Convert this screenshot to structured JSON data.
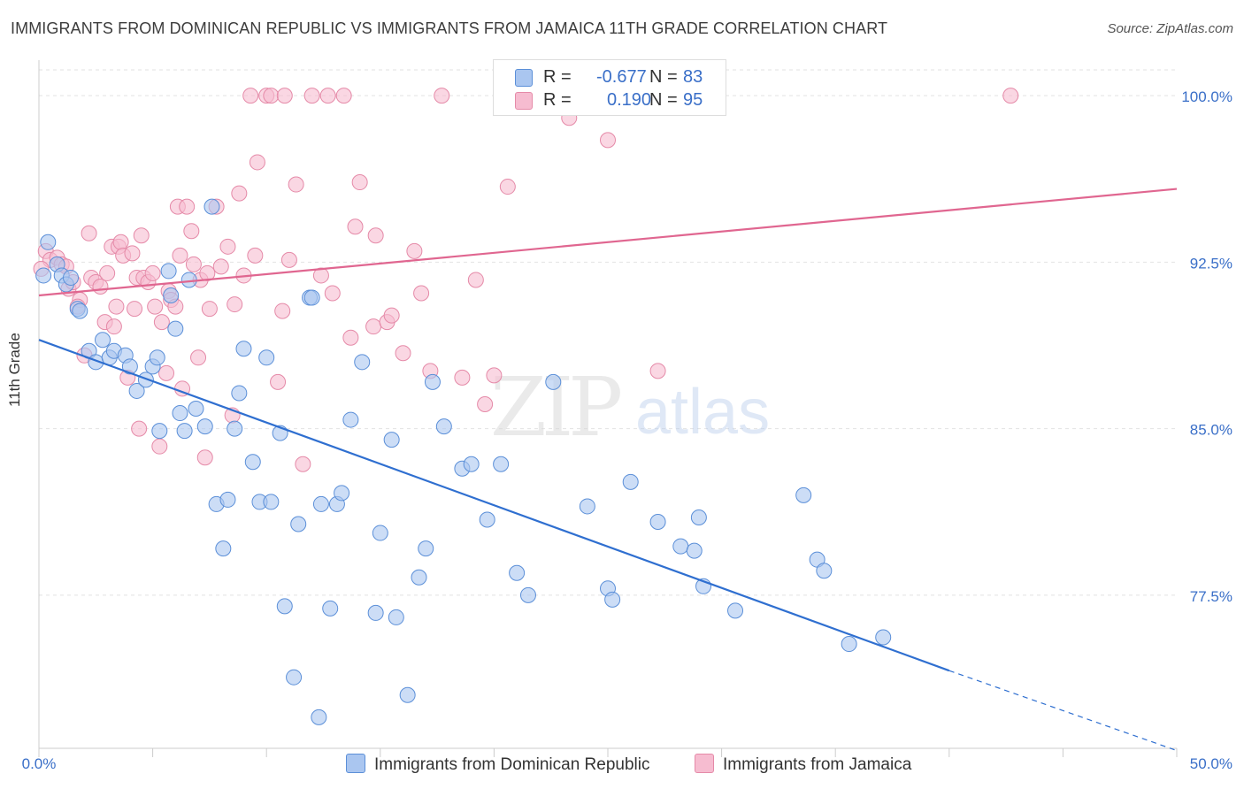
{
  "header": {
    "title": "IMMIGRANTS FROM DOMINICAN REPUBLIC VS IMMIGRANTS FROM JAMAICA 11TH GRADE CORRELATION CHART",
    "source": "Source: ZipAtlas.com"
  },
  "watermark": {
    "zip": "ZIP",
    "atlas": "atlas"
  },
  "legend": {
    "series1": {
      "r_label": "R =",
      "r_value": "-0.677",
      "n_label": "N =",
      "n_value": "83"
    },
    "series2": {
      "r_label": "R =",
      "r_value": "0.190",
      "n_label": "N =",
      "n_value": "95"
    }
  },
  "colors": {
    "blue_fill": "#aac6f0",
    "blue_stroke": "#5b8fd8",
    "blue_line": "#2f6fd0",
    "pink_fill": "#f6bcd0",
    "pink_stroke": "#e58aa8",
    "pink_line": "#e06690",
    "tick_label": "#3a6fc8",
    "grid": "#e2e2e2"
  },
  "chart_data": {
    "type": "scatter",
    "title": "IMMIGRANTS FROM DOMINICAN REPUBLIC VS IMMIGRANTS FROM JAMAICA 11TH GRADE CORRELATION CHART",
    "ylabel": "11th Grade",
    "xlim": [
      0,
      50
    ],
    "ylim": [
      70.6,
      101.6
    ],
    "x_tick_labels": [
      {
        "value": 0,
        "label": "0.0%"
      },
      {
        "value": 50,
        "label": "50.0%"
      }
    ],
    "y_ticks": [
      {
        "value": 77.5,
        "label": "77.5%"
      },
      {
        "value": 85.0,
        "label": "85.0%"
      },
      {
        "value": 92.5,
        "label": "92.5%"
      },
      {
        "value": 100.0,
        "label": "100.0%"
      }
    ],
    "series": [
      {
        "name": "Immigrants from Dominican Republic",
        "color": "#5b8fd8",
        "trend": {
          "x": [
            0,
            40
          ],
          "y": [
            89.0,
            74.1
          ],
          "dashed_to": [
            50,
            70.5
          ]
        },
        "points": [
          [
            0.4,
            93.4
          ],
          [
            0.8,
            92.4
          ],
          [
            1.0,
            91.9
          ],
          [
            1.2,
            91.5
          ],
          [
            1.4,
            91.8
          ],
          [
            1.7,
            90.4
          ],
          [
            1.8,
            90.3
          ],
          [
            2.2,
            88.5
          ],
          [
            2.5,
            88.0
          ],
          [
            2.8,
            89.0
          ],
          [
            3.1,
            88.2
          ],
          [
            3.3,
            88.5
          ],
          [
            3.8,
            88.3
          ],
          [
            4.0,
            87.8
          ],
          [
            4.3,
            86.7
          ],
          [
            4.7,
            87.2
          ],
          [
            5.0,
            87.8
          ],
          [
            5.2,
            88.2
          ],
          [
            5.3,
            84.9
          ],
          [
            5.7,
            92.1
          ],
          [
            5.8,
            91.0
          ],
          [
            6.0,
            89.5
          ],
          [
            6.2,
            85.7
          ],
          [
            6.4,
            84.9
          ],
          [
            6.6,
            91.7
          ],
          [
            6.9,
            85.9
          ],
          [
            7.3,
            85.1
          ],
          [
            7.6,
            95.0
          ],
          [
            7.8,
            81.6
          ],
          [
            8.1,
            79.6
          ],
          [
            8.3,
            81.8
          ],
          [
            8.6,
            85.0
          ],
          [
            8.8,
            86.6
          ],
          [
            9.0,
            88.6
          ],
          [
            9.4,
            83.5
          ],
          [
            9.7,
            81.7
          ],
          [
            10.0,
            88.2
          ],
          [
            10.2,
            81.7
          ],
          [
            10.6,
            84.8
          ],
          [
            10.8,
            77.0
          ],
          [
            11.2,
            73.8
          ],
          [
            11.4,
            80.7
          ],
          [
            11.9,
            90.9
          ],
          [
            12.0,
            90.9
          ],
          [
            12.3,
            72.0
          ],
          [
            12.4,
            81.6
          ],
          [
            12.8,
            76.9
          ],
          [
            13.1,
            81.6
          ],
          [
            13.3,
            82.1
          ],
          [
            13.7,
            85.4
          ],
          [
            14.2,
            88.0
          ],
          [
            14.8,
            76.7
          ],
          [
            15.0,
            80.3
          ],
          [
            15.5,
            84.5
          ],
          [
            15.7,
            76.5
          ],
          [
            16.2,
            73.0
          ],
          [
            16.7,
            78.3
          ],
          [
            17.0,
            79.6
          ],
          [
            17.3,
            87.1
          ],
          [
            17.8,
            85.1
          ],
          [
            18.6,
            83.2
          ],
          [
            19.0,
            83.4
          ],
          [
            19.7,
            80.9
          ],
          [
            20.3,
            83.4
          ],
          [
            21.0,
            78.5
          ],
          [
            21.5,
            77.5
          ],
          [
            22.6,
            87.1
          ],
          [
            24.1,
            81.5
          ],
          [
            25.0,
            77.8
          ],
          [
            25.2,
            77.3
          ],
          [
            26.0,
            82.6
          ],
          [
            27.2,
            80.8
          ],
          [
            28.2,
            79.7
          ],
          [
            28.8,
            79.5
          ],
          [
            29.0,
            81.0
          ],
          [
            29.2,
            77.9
          ],
          [
            30.6,
            76.8
          ],
          [
            33.6,
            82.0
          ],
          [
            34.2,
            79.1
          ],
          [
            34.5,
            78.6
          ],
          [
            35.6,
            75.3
          ],
          [
            37.1,
            75.6
          ],
          [
            0.2,
            91.9
          ]
        ]
      },
      {
        "name": "Immigrants from Jamaica",
        "color": "#e58aa8",
        "trend": {
          "x": [
            0,
            50
          ],
          "y": [
            91.0,
            95.8
          ]
        },
        "points": [
          [
            0.3,
            93.0
          ],
          [
            0.5,
            92.6
          ],
          [
            0.8,
            92.7
          ],
          [
            1.0,
            92.4
          ],
          [
            1.2,
            92.3
          ],
          [
            1.3,
            91.3
          ],
          [
            1.5,
            91.6
          ],
          [
            1.8,
            90.8
          ],
          [
            2.0,
            88.3
          ],
          [
            2.2,
            93.8
          ],
          [
            2.3,
            91.8
          ],
          [
            2.5,
            91.6
          ],
          [
            2.7,
            91.4
          ],
          [
            2.9,
            89.8
          ],
          [
            3.0,
            92.0
          ],
          [
            3.2,
            93.2
          ],
          [
            3.3,
            89.6
          ],
          [
            3.4,
            90.5
          ],
          [
            3.5,
            93.2
          ],
          [
            3.6,
            93.4
          ],
          [
            3.7,
            92.8
          ],
          [
            3.9,
            87.3
          ],
          [
            4.1,
            92.9
          ],
          [
            4.2,
            90.4
          ],
          [
            4.3,
            91.8
          ],
          [
            4.4,
            85.0
          ],
          [
            4.5,
            93.7
          ],
          [
            4.6,
            91.8
          ],
          [
            4.8,
            91.6
          ],
          [
            5.0,
            92.0
          ],
          [
            5.1,
            90.5
          ],
          [
            5.3,
            84.2
          ],
          [
            5.4,
            89.8
          ],
          [
            5.6,
            87.5
          ],
          [
            5.7,
            91.2
          ],
          [
            5.8,
            90.8
          ],
          [
            6.0,
            90.5
          ],
          [
            6.1,
            95.0
          ],
          [
            6.2,
            92.8
          ],
          [
            6.3,
            86.8
          ],
          [
            6.5,
            95.0
          ],
          [
            6.7,
            93.9
          ],
          [
            6.8,
            92.4
          ],
          [
            7.0,
            88.2
          ],
          [
            7.1,
            91.7
          ],
          [
            7.3,
            83.7
          ],
          [
            7.4,
            92.0
          ],
          [
            7.5,
            90.4
          ],
          [
            7.8,
            95.0
          ],
          [
            8.0,
            92.3
          ],
          [
            8.3,
            93.2
          ],
          [
            8.5,
            85.6
          ],
          [
            8.6,
            90.6
          ],
          [
            8.8,
            95.6
          ],
          [
            9.0,
            91.9
          ],
          [
            9.3,
            100.0
          ],
          [
            9.5,
            92.8
          ],
          [
            9.6,
            97.0
          ],
          [
            10.0,
            100.0
          ],
          [
            10.2,
            100.0
          ],
          [
            10.5,
            87.1
          ],
          [
            10.7,
            90.3
          ],
          [
            10.8,
            100.0
          ],
          [
            11.0,
            92.6
          ],
          [
            11.3,
            96.0
          ],
          [
            11.6,
            83.4
          ],
          [
            12.0,
            100.0
          ],
          [
            12.4,
            91.9
          ],
          [
            12.7,
            100.0
          ],
          [
            12.9,
            91.1
          ],
          [
            13.4,
            100.0
          ],
          [
            13.7,
            89.1
          ],
          [
            13.9,
            94.1
          ],
          [
            14.1,
            96.1
          ],
          [
            14.7,
            89.6
          ],
          [
            14.8,
            93.7
          ],
          [
            15.3,
            89.8
          ],
          [
            15.5,
            90.1
          ],
          [
            16.0,
            88.4
          ],
          [
            16.5,
            93.0
          ],
          [
            16.8,
            91.1
          ],
          [
            17.2,
            87.6
          ],
          [
            17.7,
            100.0
          ],
          [
            18.6,
            87.3
          ],
          [
            19.2,
            91.7
          ],
          [
            19.6,
            86.1
          ],
          [
            20.0,
            87.4
          ],
          [
            20.6,
            95.9
          ],
          [
            20.9,
            100.0
          ],
          [
            23.3,
            99.0
          ],
          [
            25.0,
            98.0
          ],
          [
            27.2,
            87.6
          ],
          [
            42.7,
            100.0
          ],
          [
            0.1,
            92.2
          ],
          [
            1.7,
            90.5
          ]
        ]
      }
    ]
  },
  "bottom_legend": {
    "item1": "Immigrants from Dominican Republic",
    "item2": "Immigrants from Jamaica"
  }
}
